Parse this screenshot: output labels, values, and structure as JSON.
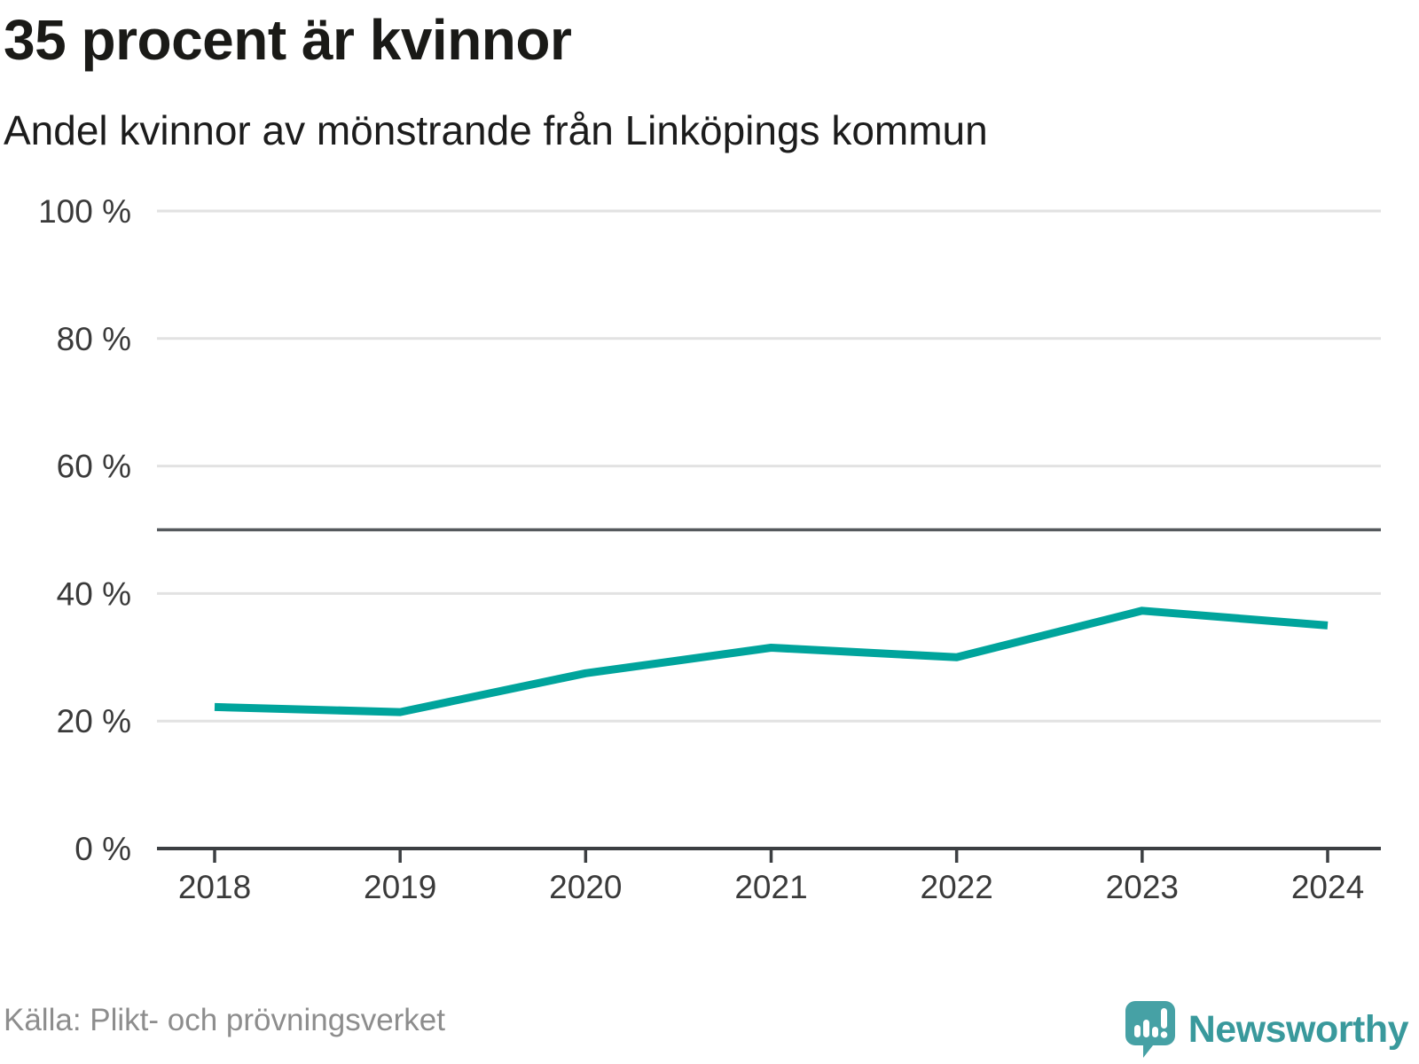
{
  "header": {
    "title": "35 procent är kvinnor",
    "subtitle": "Andel kvinnor av mönstrande från Linköpings kommun"
  },
  "footer": {
    "source": "Källa: Plikt- och prövningsverket",
    "brand_name": "Newsworthy"
  },
  "colors": {
    "line": "#00a49c",
    "grid": "#e2e2e2",
    "reference_line": "#55595d",
    "axis": "#3c3f42",
    "tick_label": "#3a3a3a",
    "title": "#1a1a17",
    "source_text": "#8d8d8d",
    "brand": "#39999c",
    "logo_bubble": "#46a1a5",
    "logo_glyph": "#ffffff"
  },
  "chart_data": {
    "type": "line",
    "title": "35 procent är kvinnor",
    "subtitle": "Andel kvinnor av mönstrande från Linköpings kommun",
    "x": [
      2018,
      2019,
      2020,
      2021,
      2022,
      2023,
      2024
    ],
    "series": [
      {
        "name": "Andel kvinnor av mönstrande",
        "values": [
          22.2,
          21.4,
          27.5,
          31.5,
          30.0,
          37.3,
          35.0
        ]
      }
    ],
    "unit": "%",
    "ylim": [
      0,
      100
    ],
    "yticks": [
      0,
      20,
      40,
      60,
      80,
      100
    ],
    "ytick_suffix": " %",
    "reference_line": 50,
    "grid": "horizontal",
    "legend": "none",
    "source": "Källa: Plikt- och prövningsverket"
  }
}
